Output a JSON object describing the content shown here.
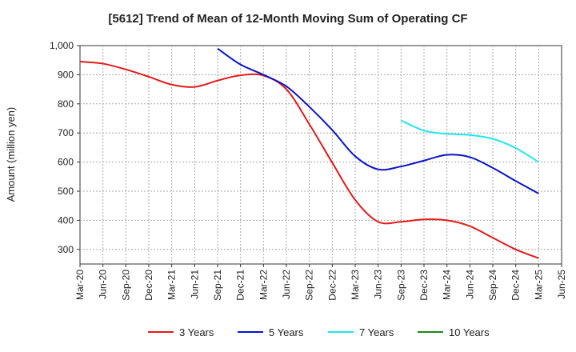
{
  "chart_data": {
    "type": "line",
    "title": "[5612]  Trend of Mean of 12-Month Moving Sum of Operating CF",
    "xlabel": "",
    "ylabel": "Amount (million yen)",
    "ylim": [
      250,
      1000
    ],
    "yticks": [
      300,
      400,
      500,
      600,
      700,
      800,
      900,
      1000
    ],
    "ytick_labels": [
      "300",
      "400",
      "500",
      "600",
      "700",
      "800",
      "900",
      "1,000"
    ],
    "grid": true,
    "legend_position": "bottom",
    "categories": [
      "Mar-20",
      "Jun-20",
      "Sep-20",
      "Dec-20",
      "Mar-21",
      "Jun-21",
      "Sep-21",
      "Dec-21",
      "Mar-22",
      "Jun-22",
      "Sep-22",
      "Dec-22",
      "Mar-23",
      "Jun-23",
      "Sep-23",
      "Dec-23",
      "Mar-24",
      "Jun-24",
      "Sep-24",
      "Dec-24",
      "Mar-25",
      "Jun-25"
    ],
    "series": [
      {
        "name": "3 Years",
        "color": "#e41a1a",
        "values": [
          945,
          938,
          918,
          893,
          866,
          858,
          880,
          898,
          897,
          850,
          730,
          598,
          470,
          395,
          395,
          403,
          400,
          380,
          340,
          300,
          270,
          null
        ]
      },
      {
        "name": "5 Years",
        "color": "#0a14c8",
        "values": [
          null,
          null,
          null,
          null,
          null,
          null,
          990,
          935,
          900,
          860,
          790,
          710,
          620,
          575,
          585,
          605,
          625,
          617,
          580,
          535,
          492,
          null
        ]
      },
      {
        "name": "7 Years",
        "color": "#22e8e8",
        "values": [
          null,
          null,
          null,
          null,
          null,
          null,
          null,
          null,
          null,
          null,
          null,
          null,
          null,
          null,
          743,
          708,
          697,
          693,
          680,
          648,
          600,
          null
        ]
      },
      {
        "name": "10 Years",
        "color": "#1a8a1a",
        "values": [
          null,
          null,
          null,
          null,
          null,
          null,
          null,
          null,
          null,
          null,
          null,
          null,
          null,
          null,
          null,
          null,
          null,
          null,
          null,
          null,
          null,
          null
        ]
      }
    ]
  }
}
